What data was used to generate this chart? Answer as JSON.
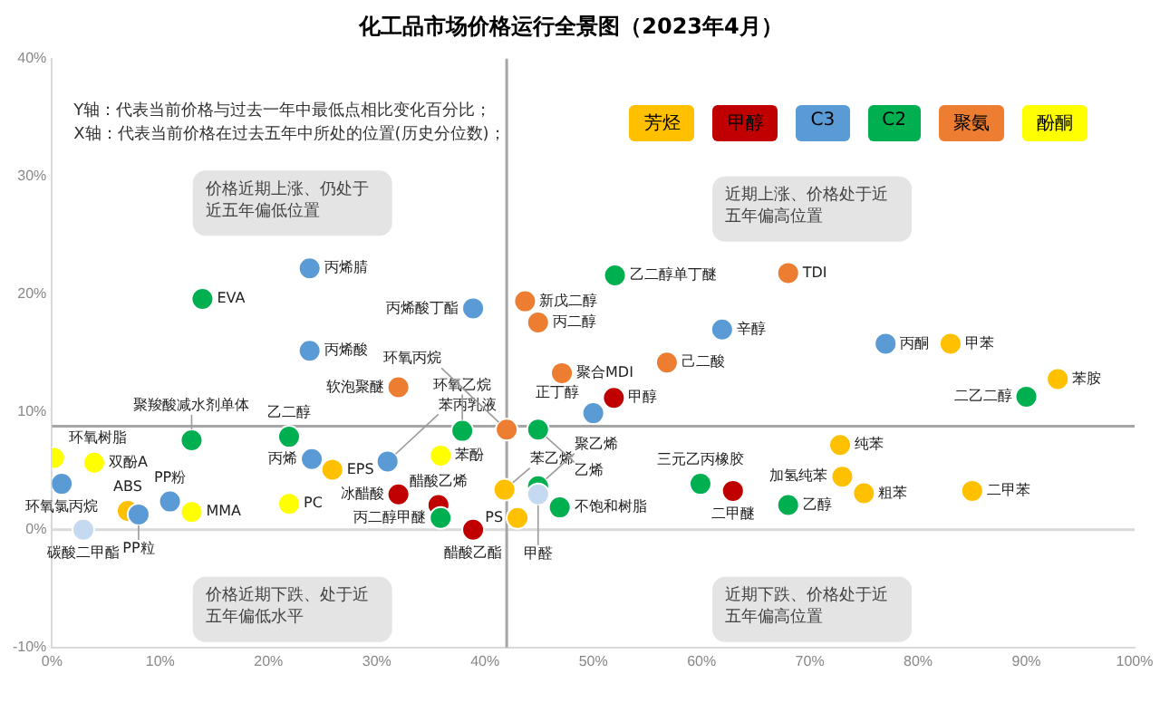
{
  "chart_data": {
    "type": "scatter",
    "title": "化工品市场价格运行全景图（2023年4月）",
    "xlim": [
      0,
      100
    ],
    "ylim": [
      -10,
      40
    ],
    "xticks": [
      {
        "value": 0,
        "label": "0%"
      },
      {
        "value": 10,
        "label": "10%"
      },
      {
        "value": 20,
        "label": "20%"
      },
      {
        "value": 30,
        "label": "30%"
      },
      {
        "value": 40,
        "label": "40%"
      },
      {
        "value": 50,
        "label": "50%"
      },
      {
        "value": 60,
        "label": "60%"
      },
      {
        "value": 70,
        "label": "70%"
      },
      {
        "value": 80,
        "label": "80%"
      },
      {
        "value": 90,
        "label": "90%"
      },
      {
        "value": 100,
        "label": "100%"
      }
    ],
    "yticks": [
      {
        "value": -10,
        "label": "-10%"
      },
      {
        "value": 0,
        "label": "0%"
      },
      {
        "value": 10,
        "label": "10%"
      },
      {
        "value": 20,
        "label": "20%"
      },
      {
        "value": 30,
        "label": "30%"
      },
      {
        "value": 40,
        "label": "40%"
      }
    ],
    "grid": false,
    "legend": "top right",
    "marker": "circle",
    "ref_lines": [
      {
        "axis": "y",
        "value": 0,
        "color": "#d9d9d9"
      },
      {
        "axis": "x",
        "value": 42,
        "color": "#a6a6a6"
      },
      {
        "axis": "y",
        "value": 8.8,
        "color": "#a6a6a6"
      }
    ],
    "series": [
      {
        "name": "芳烃",
        "color": "#ffc000",
        "x": [
          83,
          92.9,
          25.9,
          7,
          41.8,
          43,
          72.8,
          73,
          75,
          85
        ],
        "values": [
          15.8,
          12.8,
          5.1,
          1.6,
          3.4,
          1,
          7.2,
          4.5,
          3.1,
          3.3
        ]
      },
      {
        "name": "甲醇",
        "color": "#c00000",
        "x": [
          51.9,
          32,
          35.7,
          38.9,
          62.9
        ],
        "values": [
          11.2,
          3,
          2.1,
          0,
          3.3
        ]
      },
      {
        "name": "C3",
        "color": "#5b9bd5",
        "x": [
          23.8,
          23.8,
          38.9,
          61.9,
          77,
          50,
          24,
          0.9,
          10.9,
          8,
          31
        ],
        "values": [
          22.2,
          15.2,
          18.8,
          17,
          15.8,
          9.9,
          6,
          3.9,
          2.4,
          1.3,
          5.8
        ]
      },
      {
        "name": "C2",
        "color": "#00b050",
        "x": [
          13.9,
          52,
          90,
          44.9,
          37.9,
          21.9,
          12.9,
          35.9,
          44.9,
          46.9,
          59.9,
          68
        ],
        "values": [
          19.6,
          21.6,
          11.3,
          8.5,
          8.4,
          7.9,
          7.6,
          1,
          3.7,
          1.9,
          3.9,
          2.1
        ]
      },
      {
        "name": "聚氨",
        "color": "#ed7d31",
        "x": [
          43.7,
          44.9,
          68,
          32,
          47.1,
          56.8,
          42
        ],
        "values": [
          19.4,
          17.6,
          21.8,
          12.1,
          13.3,
          14.2,
          8.5
        ]
      },
      {
        "name": "酚酮",
        "color": "#ffff00",
        "x": [
          0.2,
          3.9,
          12.9,
          21.9,
          35.9
        ],
        "values": [
          6.1,
          5.7,
          1.5,
          2.2,
          6.3
        ]
      },
      {
        "color": "#c5d9f1",
        "x": [
          2.9,
          44.9
        ],
        "values": [
          0,
          3
        ]
      }
    ],
    "annotations": [
      "Y轴：代表当前价格与过去一年中最低点相比变化百分比；",
      "X轴：代表当前价格在过去五年中所处的位置(历史分位数)；",
      "价格近期上涨、仍处于近五年偏低位置",
      "近期上涨、价格处于近五年偏高位置",
      "价格近期下跌、处于近五年偏低水平",
      "近期下跌、价格处于近五年偏高位置",
      {
        "text": "甲苯",
        "x": 83,
        "y": 15.8
      },
      {
        "text": "苯胺",
        "x": 92.9,
        "y": 12.8
      },
      {
        "text": "EPS",
        "x": 25.9,
        "y": 5.1
      },
      {
        "text": "ABS",
        "x": 7,
        "y": 1.6
      },
      {
        "text": "苯乙烯",
        "x": 41.8,
        "y": 3.4
      },
      {
        "text": "PS",
        "x": 43,
        "y": 1
      },
      {
        "text": "纯苯",
        "x": 72.8,
        "y": 7.2
      },
      {
        "text": "加氢纯苯",
        "x": 73,
        "y": 4.5
      },
      {
        "text": "粗苯",
        "x": 75,
        "y": 3.1
      },
      {
        "text": "二甲苯",
        "x": 85,
        "y": 3.3
      },
      {
        "text": "甲醇",
        "x": 51.9,
        "y": 11.2
      },
      {
        "text": "冰醋酸",
        "x": 32,
        "y": 3
      },
      {
        "text": "醋酸乙烯",
        "x": 35.7,
        "y": 2.1
      },
      {
        "text": "醋酸乙酯",
        "x": 38.9,
        "y": 0
      },
      {
        "text": "二甲醚",
        "x": 62.9,
        "y": 3.3
      },
      {
        "text": "丙烯腈",
        "x": 23.8,
        "y": 22.2
      },
      {
        "text": "丙烯酸",
        "x": 23.8,
        "y": 15.2
      },
      {
        "text": "丙烯酸丁酯",
        "x": 38.9,
        "y": 18.8
      },
      {
        "text": "辛醇",
        "x": 61.9,
        "y": 17
      },
      {
        "text": "丙酮",
        "x": 77,
        "y": 15.8
      },
      {
        "text": "正丁醇",
        "x": 50,
        "y": 9.9
      },
      {
        "text": "丙烯",
        "x": 24,
        "y": 6
      },
      {
        "text": "环氧氯丙烷",
        "x": 0.9,
        "y": 3.9
      },
      {
        "text": "PP粉",
        "x": 10.9,
        "y": 2.4
      },
      {
        "text": "PP粒",
        "x": 8,
        "y": 1.3
      },
      {
        "text": "苯丙乳液",
        "x": 31,
        "y": 5.8
      },
      {
        "text": "EVA",
        "x": 13.9,
        "y": 19.6
      },
      {
        "text": "乙二醇单丁醚",
        "x": 52,
        "y": 21.6
      },
      {
        "text": "二乙二醇",
        "x": 90,
        "y": 11.3
      },
      {
        "text": "乙烯",
        "x": 44.9,
        "y": 8.5
      },
      {
        "text": "环氧乙烷",
        "x": 37.9,
        "y": 8.4
      },
      {
        "text": "乙二醇",
        "x": 21.9,
        "y": 7.9
      },
      {
        "text": "聚羧酸减水剂单体",
        "x": 12.9,
        "y": 7.6
      },
      {
        "text": "丙二醇甲醚",
        "x": 35.9,
        "y": 1
      },
      {
        "text": "聚乙烯",
        "x": 44.9,
        "y": 3.7
      },
      {
        "text": "不饱和树脂",
        "x": 46.9,
        "y": 1.9
      },
      {
        "text": "三元乙丙橡胶",
        "x": 59.9,
        "y": 3.9
      },
      {
        "text": "乙醇",
        "x": 68,
        "y": 2.1
      },
      {
        "text": "新戊二醇",
        "x": 43.7,
        "y": 19.4
      },
      {
        "text": "丙二醇",
        "x": 44.9,
        "y": 17.6
      },
      {
        "text": "TDI",
        "x": 68,
        "y": 21.8
      },
      {
        "text": "软泡聚醚",
        "x": 32,
        "y": 12.1
      },
      {
        "text": "聚合MDI",
        "x": 47.1,
        "y": 13.3
      },
      {
        "text": "己二酸",
        "x": 56.8,
        "y": 14.2
      },
      {
        "text": "环氧丙烷",
        "x": 42,
        "y": 8.5
      },
      {
        "text": "环氧树脂",
        "x": 0.2,
        "y": 6.1
      },
      {
        "text": "双酚A",
        "x": 3.9,
        "y": 5.7
      },
      {
        "text": "MMA",
        "x": 12.9,
        "y": 1.5
      },
      {
        "text": "PC",
        "x": 21.9,
        "y": 2.2
      },
      {
        "text": "苯酚",
        "x": 35.9,
        "y": 6.3
      },
      {
        "text": "碳酸二甲酯",
        "x": 2.9,
        "y": 0
      },
      {
        "text": "甲醛",
        "x": 44.9,
        "y": 3
      }
    ]
  }
}
